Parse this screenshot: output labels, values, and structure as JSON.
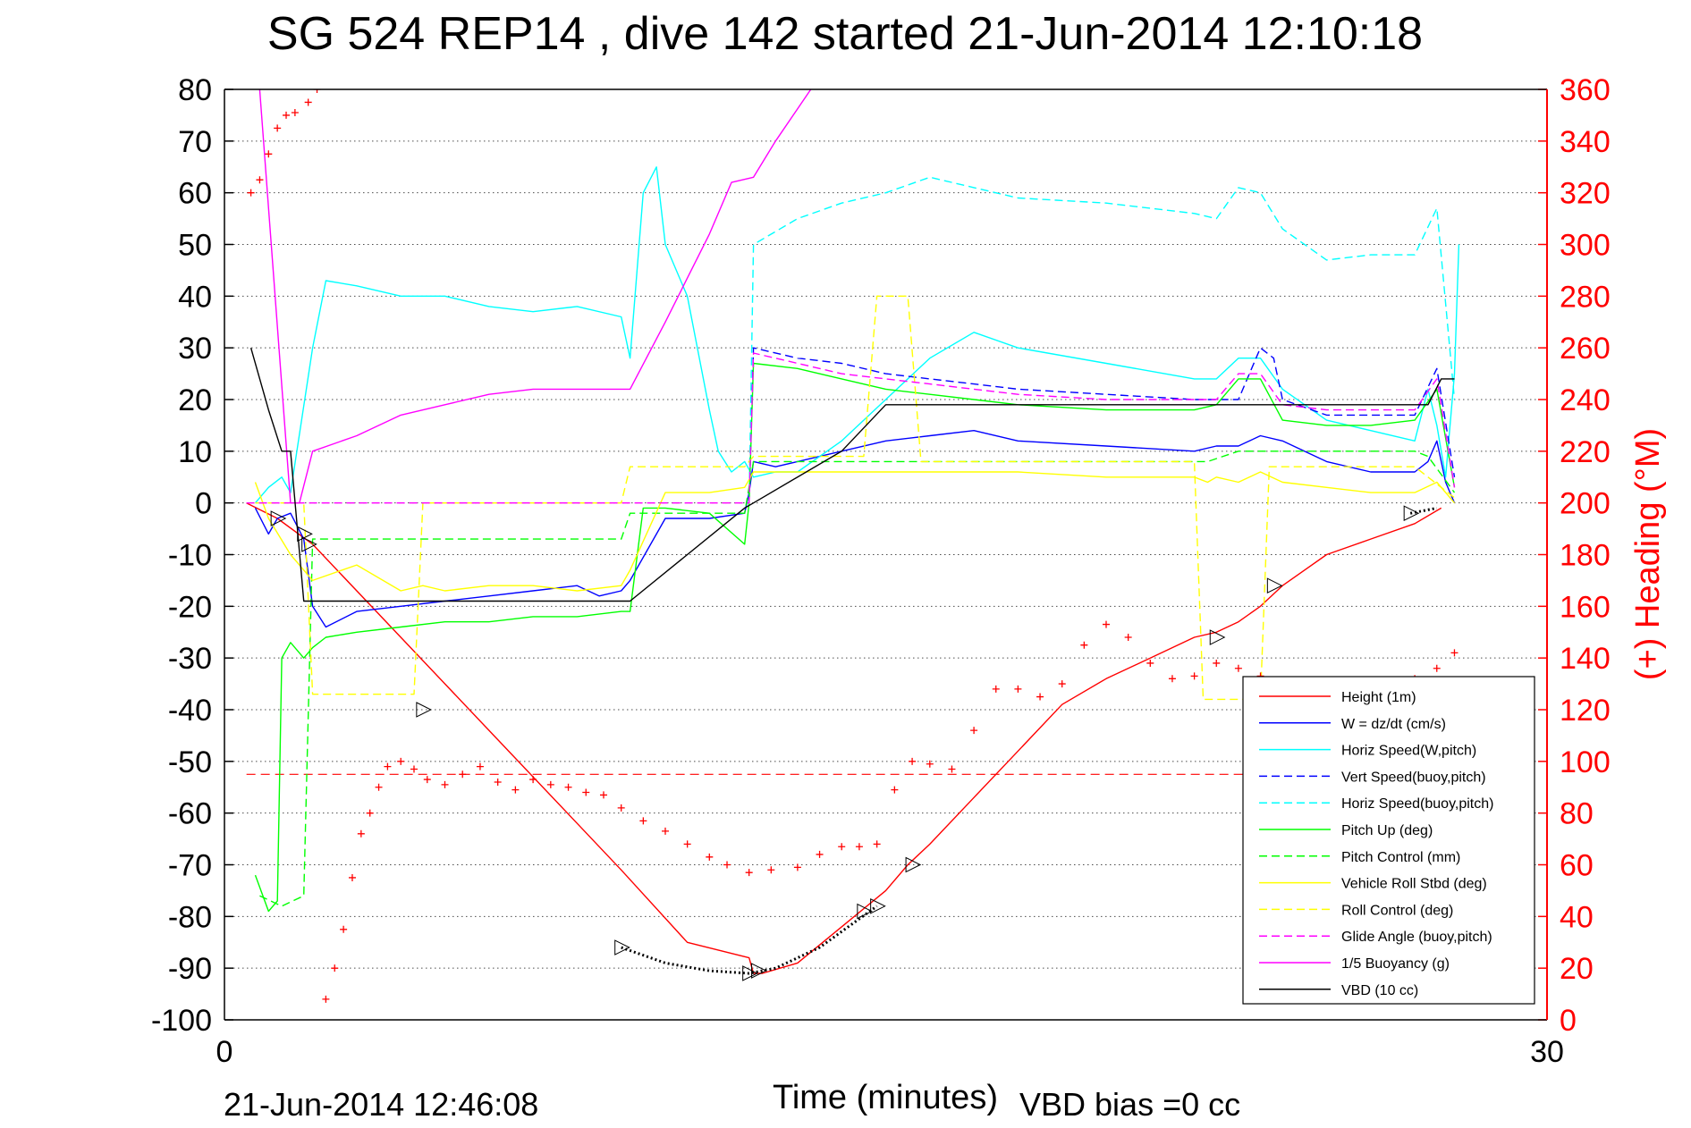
{
  "chart_data": {
    "type": "line",
    "title": "SG 524   REP14  , dive 142 started 21-Jun-2014 12:10:18",
    "xlabel": "Time (minutes)",
    "ylabel_right": "(+) Heading (°M)",
    "footer_left": "21-Jun-2014 12:46:08",
    "footer_right": "VBD bias =0 cc",
    "xlim": [
      0,
      30
    ],
    "ylim_left": [
      -100,
      80
    ],
    "ylim_right": [
      0,
      360
    ],
    "x_ticks": [
      "0",
      "30"
    ],
    "y_ticks_left": [
      "80",
      "70",
      "60",
      "50",
      "40",
      "30",
      "20",
      "10",
      "0",
      "-10",
      "-20",
      "-30",
      "-40",
      "-50",
      "-60",
      "-70",
      "-80",
      "-90",
      "-100"
    ],
    "y_ticks_right": [
      "360",
      "340",
      "320",
      "300",
      "280",
      "260",
      "240",
      "220",
      "200",
      "180",
      "160",
      "140",
      "120",
      "100",
      "80",
      "60",
      "40",
      "20",
      "0"
    ],
    "grid": true,
    "legend_position": "bottom-right",
    "heading_reference": 95,
    "series": [
      {
        "name": "Height (1m)",
        "color": "#ff0000",
        "style": "solid",
        "x": [
          0.5,
          1.2,
          2.0,
          4.0,
          6.0,
          8.0,
          9.0,
          10.5,
          11.9,
          12.0,
          12.2,
          13.0,
          14.0,
          15.0,
          15.5,
          16.0,
          17.0,
          18.0,
          19.0,
          20.0,
          21.0,
          22.0,
          22.5,
          23.0,
          23.5,
          24.0,
          25.0,
          26.0,
          27.0,
          27.6
        ],
        "y": [
          0,
          -3,
          -8,
          -26,
          -44,
          -62,
          -71,
          -85,
          -88,
          -91,
          -91,
          -89,
          -82,
          -75,
          -70,
          -66,
          -57,
          -48,
          -39,
          -34,
          -30,
          -26,
          -25,
          -23,
          -20,
          -16,
          -10,
          -7,
          -4,
          -1
        ]
      },
      {
        "name": "W = dz/dt (cm/s)",
        "color": "#0000ff",
        "style": "solid",
        "x": [
          0.7,
          1.0,
          1.2,
          1.5,
          1.8,
          2.0,
          2.3,
          3.0,
          4.0,
          5.0,
          6.0,
          7.0,
          8.0,
          8.5,
          9.0,
          9.2,
          10.0,
          11.0,
          11.8,
          11.9,
          12.0,
          12.5,
          13.0,
          14.0,
          15.0,
          16.0,
          17.0,
          18.0,
          20.0,
          22.0,
          22.5,
          23.0,
          23.5,
          24.0,
          25.0,
          26.0,
          27.0,
          27.3,
          27.5,
          27.7,
          27.9
        ],
        "y": [
          -1,
          -6,
          -3,
          -2,
          -7,
          -20,
          -24,
          -21,
          -20,
          -19,
          -18,
          -17,
          -16,
          -18,
          -17,
          -15,
          -3,
          -3,
          -2,
          2,
          8,
          7,
          8,
          10,
          12,
          13,
          14,
          12,
          11,
          10,
          11,
          11,
          13,
          12,
          8,
          6,
          6,
          8,
          12,
          4,
          0
        ]
      },
      {
        "name": "Horiz Speed(W,pitch)",
        "color": "#00ffff",
        "style": "solid",
        "x": [
          0.7,
          1.0,
          1.3,
          1.5,
          2.0,
          2.3,
          3.0,
          4.0,
          5.0,
          6.0,
          7.0,
          8.0,
          9.0,
          9.2,
          9.5,
          9.8,
          10.0,
          10.5,
          11.0,
          11.2,
          11.5,
          11.8,
          12.0,
          12.5,
          13.0,
          14.0,
          15.0,
          16.0,
          17.0,
          18.0,
          20.0,
          22.0,
          22.5,
          23.0,
          23.5,
          24.0,
          25.0,
          26.0,
          27.0,
          27.3,
          27.5,
          27.7,
          27.9,
          28.0
        ],
        "y": [
          0,
          3,
          5,
          2,
          30,
          43,
          42,
          40,
          40,
          38,
          37,
          38,
          36,
          28,
          60,
          65,
          50,
          40,
          18,
          10,
          6,
          8,
          5,
          6,
          6,
          12,
          20,
          28,
          33,
          30,
          27,
          24,
          24,
          28,
          28,
          22,
          16,
          14,
          12,
          22,
          15,
          5,
          25,
          50
        ]
      },
      {
        "name": "Vert Speed(buoy,pitch)",
        "color": "#0000ff",
        "style": "dashed",
        "x": [
          11.9,
          12.0,
          13.0,
          14.0,
          15.0,
          16.0,
          17.0,
          18.0,
          20.0,
          22.0,
          23.0,
          23.5,
          23.8,
          24.0,
          25.0,
          26.0,
          27.0,
          27.5,
          27.9
        ],
        "y": [
          0,
          30,
          28,
          27,
          25,
          24,
          23,
          22,
          21,
          20,
          20,
          30,
          28,
          20,
          17,
          17,
          17,
          26,
          5
        ]
      },
      {
        "name": "Horiz Speed(buoy,pitch)",
        "color": "#00ffff",
        "style": "dashed",
        "x": [
          11.9,
          12.0,
          13.0,
          14.0,
          15.0,
          16.0,
          17.0,
          18.0,
          20.0,
          22.0,
          22.5,
          23.0,
          23.5,
          24.0,
          25.0,
          26.0,
          27.0,
          27.5,
          27.9
        ],
        "y": [
          0,
          50,
          55,
          58,
          60,
          63,
          61,
          59,
          58,
          56,
          55,
          61,
          60,
          53,
          47,
          48,
          48,
          57,
          20
        ]
      },
      {
        "name": "Pitch Up (deg)",
        "color": "#00ff00",
        "style": "solid",
        "x": [
          0.7,
          1.0,
          1.2,
          1.3,
          1.5,
          1.8,
          2.0,
          2.3,
          3.0,
          4.0,
          5.0,
          6.0,
          7.0,
          8.0,
          9.0,
          9.2,
          9.5,
          10.0,
          11.0,
          11.8,
          11.9,
          12.0,
          13.0,
          14.0,
          15.0,
          16.0,
          17.0,
          18.0,
          20.0,
          22.0,
          22.5,
          23.0,
          23.5,
          24.0,
          25.0,
          26.0,
          27.0,
          27.5,
          27.9
        ],
        "y": [
          -72,
          -79,
          -77,
          -30,
          -27,
          -30,
          -28,
          -26,
          -25,
          -24,
          -23,
          -23,
          -22,
          -22,
          -21,
          -21,
          -1,
          -1,
          -2,
          -8,
          0,
          27,
          26,
          24,
          22,
          21,
          20,
          19,
          18,
          18,
          19,
          24,
          24,
          16,
          15,
          15,
          16,
          22,
          3
        ]
      },
      {
        "name": "Pitch Control (mm)",
        "color": "#00ff00",
        "style": "dashed",
        "x": [
          0.8,
          1.3,
          1.8,
          2.0,
          8.0,
          9.0,
          9.2,
          11.8,
          12.0,
          14.5,
          14.8,
          15.0,
          22.0,
          22.3,
          23.0,
          23.5,
          24.0,
          27.0,
          27.3,
          27.9
        ],
        "y": [
          -76,
          -78,
          -76,
          -7,
          -7,
          -7,
          -2,
          -2,
          8,
          8,
          8,
          8,
          8,
          8,
          10,
          10,
          10,
          10,
          9,
          2
        ]
      },
      {
        "name": "Vehicle Roll Stbd (deg)",
        "color": "#ffff00",
        "style": "solid",
        "x": [
          0.7,
          1.0,
          1.5,
          2.0,
          3.0,
          4.0,
          4.5,
          5.0,
          6.0,
          7.0,
          8.0,
          9.0,
          9.2,
          10.0,
          11.0,
          11.8,
          12.0,
          13.0,
          14.0,
          15.0,
          16.0,
          17.0,
          18.0,
          20.0,
          22.0,
          22.3,
          22.5,
          23.0,
          23.5,
          24.0,
          25.0,
          26.0,
          27.0,
          27.5,
          27.9
        ],
        "y": [
          4,
          -3,
          -10,
          -15,
          -12,
          -17,
          -16,
          -17,
          -16,
          -16,
          -17,
          -16,
          -13,
          2,
          2,
          3,
          6,
          6,
          6,
          6,
          6,
          6,
          6,
          5,
          5,
          4,
          5,
          4,
          6,
          4,
          3,
          2,
          2,
          4,
          0
        ]
      },
      {
        "name": "Roll Control (deg)",
        "color": "#ffff00",
        "style": "dashed",
        "x": [
          0.7,
          1.8,
          2.0,
          4.3,
          4.5,
          9.0,
          9.2,
          11.8,
          12.0,
          14.5,
          14.8,
          15.5,
          15.8,
          22.0,
          22.2,
          23.5,
          23.7,
          27.0,
          27.9
        ],
        "y": [
          0,
          0,
          -37,
          -37,
          0,
          0,
          7,
          7,
          9,
          9,
          40,
          40,
          8,
          8,
          -38,
          -38,
          7,
          7,
          1
        ]
      },
      {
        "name": "Glide Angle (buoy,pitch)",
        "color": "#ff00ff",
        "style": "dashed",
        "x": [
          0.5,
          4.0,
          8.0,
          11.9,
          12.0,
          13.0,
          14.0,
          15.0,
          16.0,
          17.0,
          18.0,
          20.0,
          22.0,
          22.5,
          23.0,
          23.5,
          24.0,
          25.0,
          26.0,
          27.0,
          27.5,
          27.9
        ],
        "y": [
          0,
          0,
          0,
          0,
          29,
          27,
          25,
          24,
          23,
          22,
          21,
          20,
          20,
          20,
          25,
          25,
          19,
          18,
          18,
          18,
          24,
          3
        ]
      },
      {
        "name": "1/5 Buoyancy (g)",
        "color": "#ff00ff",
        "style": "solid",
        "x": [
          0.8,
          1.5,
          1.7,
          2.0,
          3.0,
          4.0,
          5.0,
          6.0,
          7.0,
          8.0,
          9.0,
          9.2,
          10.0,
          11.0,
          11.5,
          12.0,
          12.5,
          13.3
        ],
        "y": [
          80,
          0,
          0,
          10,
          13,
          17,
          19,
          21,
          22,
          22,
          22,
          22,
          35,
          52,
          62,
          63,
          70,
          80
        ]
      },
      {
        "name": "VBD (10 cc)",
        "color": "#000000",
        "style": "solid",
        "x": [
          0.6,
          1.0,
          1.3,
          1.5,
          1.8,
          4.0,
          6.0,
          8.0,
          9.0,
          9.2,
          11.8,
          12.0,
          14.0,
          15.0,
          16.0,
          18.0,
          20.0,
          22.0,
          23.0,
          24.0,
          25.0,
          26.0,
          27.0,
          27.3,
          27.6,
          27.9
        ],
        "y": [
          30,
          18,
          10,
          10,
          -19,
          -19,
          -19,
          -19,
          -19,
          -19,
          -1,
          0,
          10,
          19,
          19,
          19,
          19,
          19,
          19,
          19,
          19,
          19,
          19,
          19,
          24,
          24
        ]
      }
    ],
    "heading_points": {
      "name": "Heading",
      "color": "#ff0000",
      "x": [
        0.6,
        0.8,
        1.0,
        1.2,
        1.4,
        1.6,
        1.9,
        2.1,
        2.3,
        2.5,
        2.7,
        2.9,
        3.1,
        3.3,
        3.5,
        3.7,
        4.0,
        4.3,
        4.6,
        5.0,
        5.4,
        5.8,
        6.2,
        6.6,
        7.0,
        7.4,
        7.8,
        8.2,
        8.6,
        9.0,
        9.5,
        10.0,
        10.5,
        11.0,
        11.4,
        11.9,
        12.4,
        13.0,
        13.5,
        14.0,
        14.4,
        14.8,
        15.2,
        15.6,
        16.0,
        16.5,
        17.0,
        17.5,
        18.0,
        18.5,
        19.0,
        19.5,
        20.0,
        20.5,
        21.0,
        21.5,
        22.0,
        22.5,
        23.0,
        23.5,
        24.0,
        24.5,
        25.0,
        25.5,
        26.0,
        26.5,
        27.0,
        27.5,
        27.9
      ],
      "y": [
        320,
        325,
        335,
        345,
        350,
        351,
        355,
        360,
        8,
        20,
        35,
        55,
        72,
        80,
        90,
        98,
        100,
        97,
        93,
        91,
        95,
        98,
        92,
        89,
        93,
        91,
        90,
        88,
        87,
        82,
        77,
        73,
        68,
        63,
        60,
        57,
        58,
        59,
        64,
        67,
        67,
        68,
        89,
        100,
        99,
        97,
        112,
        128,
        128,
        125,
        130,
        145,
        153,
        148,
        138,
        132,
        133,
        138,
        136,
        133,
        125,
        122,
        118,
        117,
        120,
        126,
        132,
        136,
        142
      ]
    }
  }
}
